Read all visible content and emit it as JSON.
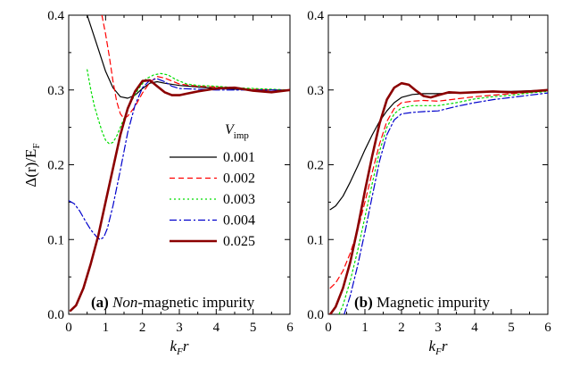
{
  "chart_data": [
    {
      "type": "line",
      "panel_label": "(a)",
      "panel_title_italic": "Non",
      "panel_title_rest": "-magnetic impurity",
      "xlabel": "k",
      "xlabel_sub": "F",
      "xlabel_tail": "r",
      "ylabel": "Δ(r)/E",
      "ylabel_sub": "F",
      "xlim": [
        0,
        6
      ],
      "ylim": [
        0,
        0.4
      ],
      "xticks": [
        "0",
        "1",
        "2",
        "3",
        "4",
        "5",
        "6"
      ],
      "yticks": [
        "0.0",
        "0.1",
        "0.2",
        "0.3",
        "0.4"
      ],
      "legend_title": "V",
      "legend_title_sub": "imp",
      "legend_position": "center-right",
      "series": [
        {
          "name": "0.001",
          "color": "#000000",
          "dash": "solid",
          "width": 1.2,
          "x": [
            0.5,
            0.8,
            1.0,
            1.2,
            1.4,
            1.6,
            1.8,
            2.0,
            2.2,
            2.4,
            2.6,
            3.0,
            3.5,
            4.0,
            4.5,
            5.0,
            5.5,
            6.0
          ],
          "y": [
            0.4,
            0.355,
            0.325,
            0.303,
            0.291,
            0.289,
            0.293,
            0.302,
            0.309,
            0.311,
            0.309,
            0.306,
            0.304,
            0.302,
            0.301,
            0.3,
            0.3,
            0.3
          ]
        },
        {
          "name": "0.002",
          "color": "#ff0000",
          "dash": "6,4",
          "width": 1.2,
          "x": [
            0.9,
            1.0,
            1.1,
            1.2,
            1.3,
            1.4,
            1.5,
            1.6,
            1.8,
            2.0,
            2.2,
            2.4,
            2.6,
            2.8,
            3.0,
            3.5,
            4.0,
            4.5,
            5.0,
            5.5,
            6.0
          ],
          "y": [
            0.4,
            0.375,
            0.345,
            0.312,
            0.285,
            0.268,
            0.262,
            0.265,
            0.278,
            0.296,
            0.31,
            0.318,
            0.316,
            0.312,
            0.308,
            0.305,
            0.304,
            0.302,
            0.301,
            0.3,
            0.3
          ]
        },
        {
          "name": "0.003",
          "color": "#00dd00",
          "dash": "2,3",
          "width": 1.2,
          "x": [
            0.5,
            0.6,
            0.7,
            0.8,
            0.9,
            1.0,
            1.1,
            1.2,
            1.3,
            1.5,
            1.7,
            1.9,
            2.1,
            2.3,
            2.5,
            2.7,
            2.9,
            3.2,
            3.5,
            4.0,
            4.5,
            5.0,
            5.5,
            6.0
          ],
          "y": [
            0.327,
            0.3,
            0.278,
            0.261,
            0.245,
            0.233,
            0.228,
            0.23,
            0.238,
            0.262,
            0.285,
            0.302,
            0.315,
            0.32,
            0.322,
            0.32,
            0.314,
            0.308,
            0.306,
            0.305,
            0.303,
            0.302,
            0.301,
            0.3
          ]
        },
        {
          "name": "0.004",
          "color": "#0000cc",
          "dash": "8,3,2,3",
          "width": 1.2,
          "x": [
            0.0,
            0.15,
            0.3,
            0.45,
            0.6,
            0.75,
            0.85,
            0.95,
            1.05,
            1.2,
            1.4,
            1.6,
            1.8,
            2.0,
            2.2,
            2.4,
            2.6,
            2.8,
            3.0,
            3.5,
            4.0,
            4.5,
            5.0,
            5.5,
            6.0
          ],
          "y": [
            0.152,
            0.148,
            0.138,
            0.125,
            0.113,
            0.104,
            0.1,
            0.103,
            0.115,
            0.145,
            0.193,
            0.243,
            0.28,
            0.303,
            0.313,
            0.315,
            0.311,
            0.305,
            0.302,
            0.301,
            0.3,
            0.3,
            0.3,
            0.3,
            0.3
          ]
        },
        {
          "name": "0.025",
          "color": "#8b0000",
          "dash": "solid",
          "width": 2.6,
          "x": [
            0.05,
            0.2,
            0.4,
            0.6,
            0.8,
            1.0,
            1.2,
            1.4,
            1.6,
            1.8,
            2.0,
            2.2,
            2.4,
            2.6,
            2.8,
            3.0,
            3.2,
            3.5,
            4.0,
            4.5,
            5.0,
            5.5,
            6.0
          ],
          "y": [
            0.005,
            0.012,
            0.035,
            0.068,
            0.105,
            0.15,
            0.195,
            0.24,
            0.275,
            0.298,
            0.312,
            0.313,
            0.305,
            0.297,
            0.293,
            0.293,
            0.295,
            0.298,
            0.302,
            0.303,
            0.299,
            0.297,
            0.3
          ]
        }
      ]
    },
    {
      "type": "line",
      "panel_label": "(b)",
      "panel_title_rest": "Magnetic impurity",
      "xlabel": "k",
      "xlabel_sub": "F",
      "xlabel_tail": "r",
      "xlim": [
        0,
        6
      ],
      "ylim": [
        0,
        0.4
      ],
      "xticks": [
        "0",
        "1",
        "2",
        "3",
        "4",
        "5",
        "6"
      ],
      "yticks": [
        "0.0",
        "0.1",
        "0.2",
        "0.3",
        "0.4"
      ],
      "series": [
        {
          "name": "0.001",
          "color": "#000000",
          "dash": "solid",
          "width": 1.2,
          "x": [
            0.05,
            0.2,
            0.4,
            0.6,
            0.8,
            1.0,
            1.2,
            1.4,
            1.6,
            1.8,
            2.0,
            2.3,
            2.6,
            3.0,
            3.5,
            4.0,
            4.5,
            5.0,
            5.5,
            6.0
          ],
          "y": [
            0.14,
            0.145,
            0.158,
            0.177,
            0.198,
            0.22,
            0.24,
            0.258,
            0.272,
            0.283,
            0.29,
            0.294,
            0.295,
            0.295,
            0.296,
            0.297,
            0.298,
            0.298,
            0.299,
            0.3
          ]
        },
        {
          "name": "0.002",
          "color": "#ff0000",
          "dash": "6,4",
          "width": 1.2,
          "x": [
            0.05,
            0.2,
            0.4,
            0.6,
            0.8,
            1.0,
            1.2,
            1.4,
            1.6,
            1.8,
            2.0,
            2.3,
            2.6,
            3.0,
            3.5,
            4.0,
            4.5,
            5.0,
            5.5,
            6.0
          ],
          "y": [
            0.035,
            0.042,
            0.058,
            0.082,
            0.112,
            0.15,
            0.19,
            0.228,
            0.258,
            0.275,
            0.283,
            0.285,
            0.286,
            0.285,
            0.288,
            0.291,
            0.293,
            0.295,
            0.297,
            0.299
          ]
        },
        {
          "name": "0.003",
          "color": "#00dd00",
          "dash": "2,3",
          "width": 1.2,
          "x": [
            0.05,
            0.2,
            0.4,
            0.6,
            0.8,
            1.0,
            1.2,
            1.4,
            1.6,
            1.8,
            2.0,
            2.3,
            2.6,
            3.0,
            3.5,
            4.0,
            4.5,
            5.0,
            5.5,
            6.0
          ],
          "y": [
            -0.02,
            -0.01,
            0.012,
            0.045,
            0.085,
            0.13,
            0.175,
            0.218,
            0.25,
            0.268,
            0.276,
            0.279,
            0.279,
            0.279,
            0.283,
            0.288,
            0.291,
            0.293,
            0.296,
            0.298
          ]
        },
        {
          "name": "0.004",
          "color": "#0000cc",
          "dash": "8,3,2,3",
          "width": 1.2,
          "x": [
            0.05,
            0.2,
            0.4,
            0.6,
            0.8,
            1.0,
            1.2,
            1.4,
            1.6,
            1.8,
            2.0,
            2.3,
            2.6,
            3.0,
            3.5,
            4.0,
            4.5,
            5.0,
            5.5,
            6.0
          ],
          "y": [
            -0.035,
            -0.025,
            -0.005,
            0.025,
            0.065,
            0.11,
            0.158,
            0.205,
            0.24,
            0.26,
            0.268,
            0.27,
            0.271,
            0.272,
            0.278,
            0.283,
            0.287,
            0.29,
            0.293,
            0.296
          ]
        },
        {
          "name": "0.025",
          "color": "#8b0000",
          "dash": "solid",
          "width": 2.6,
          "x": [
            0.05,
            0.2,
            0.4,
            0.6,
            0.8,
            1.0,
            1.2,
            1.4,
            1.6,
            1.8,
            2.0,
            2.2,
            2.4,
            2.6,
            2.8,
            3.0,
            3.3,
            3.6,
            4.0,
            4.5,
            5.0,
            5.5,
            6.0
          ],
          "y": [
            0.0,
            0.01,
            0.035,
            0.07,
            0.115,
            0.165,
            0.212,
            0.255,
            0.287,
            0.303,
            0.309,
            0.307,
            0.299,
            0.292,
            0.29,
            0.293,
            0.297,
            0.296,
            0.297,
            0.298,
            0.297,
            0.298,
            0.3
          ]
        }
      ]
    }
  ]
}
